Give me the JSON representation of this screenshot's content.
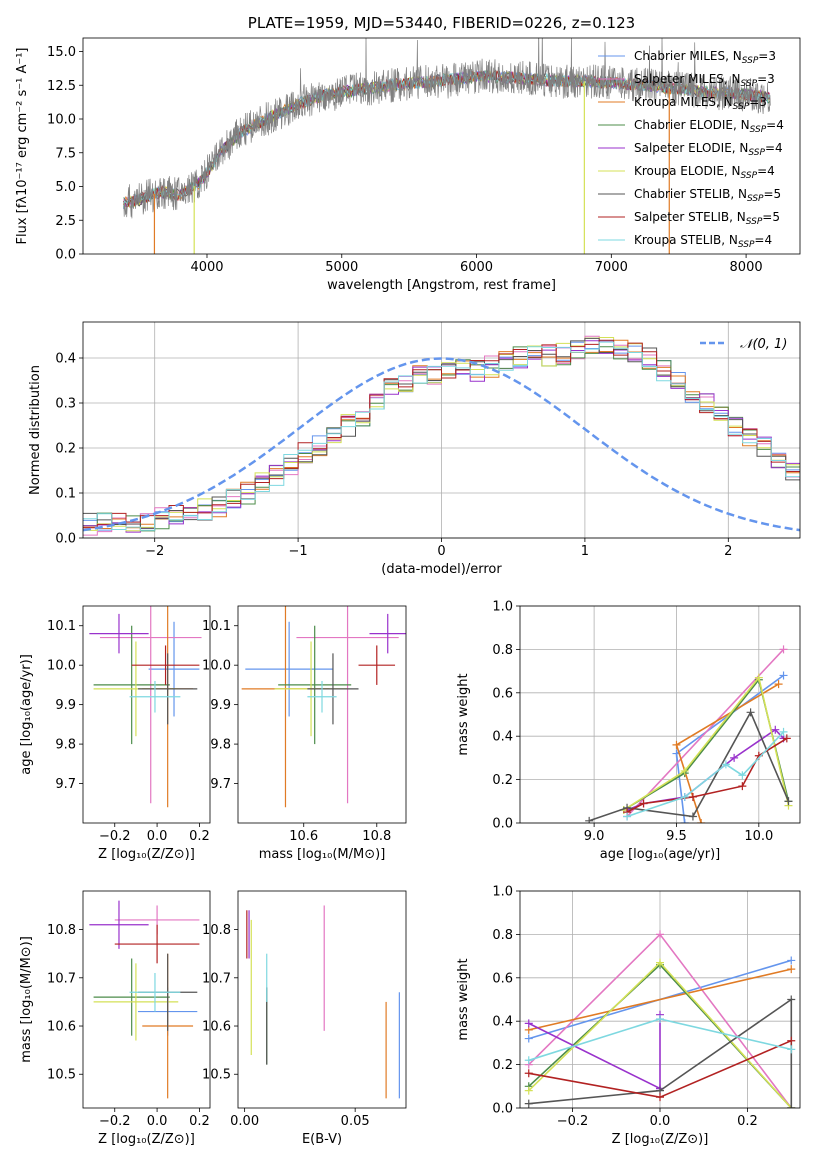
{
  "chart_data": [
    {
      "id": "spectrum",
      "type": "line",
      "title": "PLATE=1959, MJD=53440, FIBERID=0226, z=0.123",
      "xlabel": "wavelength [Angstrom, rest frame]",
      "ylabel": "Flux [fλ10⁻¹⁷ erg cm⁻² s⁻¹ A⁻¹]",
      "xlim": [
        3080,
        8400
      ],
      "ylim": [
        0,
        16
      ],
      "xticks": [
        4000,
        5000,
        6000,
        7000,
        8000
      ],
      "yticks": [
        0.0,
        2.5,
        5.0,
        7.5,
        10.0,
        12.5,
        15.0
      ],
      "data_color": "#808080",
      "x": [
        3380,
        3500,
        3650,
        3800,
        3950,
        4100,
        4250,
        4400,
        4550,
        4700,
        4850,
        5000,
        5150,
        5300,
        5450,
        5600,
        5750,
        5900,
        6050,
        6200,
        6350,
        6500,
        6650,
        6800,
        6950,
        7100,
        7250,
        7400,
        7550,
        7700,
        7850,
        8000,
        8180
      ],
      "flux": [
        3.8,
        4.0,
        4.6,
        4.4,
        5.3,
        7.5,
        9.0,
        9.8,
        10.5,
        11.2,
        11.7,
        12.0,
        12.2,
        12.4,
        12.6,
        12.7,
        12.9,
        13.0,
        13.2,
        13.1,
        13.0,
        12.9,
        12.8,
        12.8,
        12.7,
        12.6,
        12.5,
        12.3,
        12.2,
        12.0,
        11.9,
        11.8,
        11.6
      ],
      "legend": [
        {
          "prefix": "Chabrier MILES, N",
          "sub": "SSP",
          "suffix": "=3",
          "color": "#6495ed"
        },
        {
          "prefix": "Salpeter MILES, N",
          "sub": "SSP",
          "suffix": "=3",
          "color": "#e377c2"
        },
        {
          "prefix": "Kroupa MILES, N",
          "sub": "SSP",
          "suffix": "=3",
          "color": "#e07b25"
        },
        {
          "prefix": "Chabrier ELODIE, N",
          "sub": "SSP",
          "suffix": "=4",
          "color": "#4c8c4a"
        },
        {
          "prefix": "Salpeter ELODIE, N",
          "sub": "SSP",
          "suffix": "=4",
          "color": "#9932cc"
        },
        {
          "prefix": "Kroupa ELODIE, N",
          "sub": "SSP",
          "suffix": "=4",
          "color": "#d4e157"
        },
        {
          "prefix": "Chabrier STELIB, N",
          "sub": "SSP",
          "suffix": "=5",
          "color": "#555555"
        },
        {
          "prefix": "Salpeter STELIB, N",
          "sub": "SSP",
          "suffix": "=5",
          "color": "#b22222"
        },
        {
          "prefix": "Kroupa STELIB, N",
          "sub": "SSP",
          "suffix": "=4",
          "color": "#7ed8e0"
        }
      ]
    },
    {
      "id": "residuals",
      "type": "line",
      "xlabel": "(data-model)/error",
      "ylabel": "Normed distribution",
      "xlim": [
        -2.5,
        2.5
      ],
      "ylim": [
        0,
        0.48
      ],
      "xticks": [
        -2,
        -1,
        0,
        1,
        2
      ],
      "yticks": [
        0.0,
        0.1,
        0.2,
        0.3,
        0.4
      ],
      "grid": true,
      "bin_edges_start": -2.5,
      "bin_width": 0.1,
      "hist_template": [
        0.03,
        0.035,
        0.03,
        0.032,
        0.04,
        0.045,
        0.055,
        0.06,
        0.065,
        0.07,
        0.085,
        0.1,
        0.125,
        0.14,
        0.165,
        0.19,
        0.205,
        0.225,
        0.25,
        0.27,
        0.3,
        0.33,
        0.35,
        0.36,
        0.365,
        0.37,
        0.375,
        0.37,
        0.38,
        0.39,
        0.4,
        0.41,
        0.405,
        0.41,
        0.42,
        0.425,
        0.43,
        0.42,
        0.415,
        0.4,
        0.37,
        0.35,
        0.325,
        0.3,
        0.275,
        0.245,
        0.22,
        0.2,
        0.17,
        0.15,
        0.13,
        0.115,
        0.1,
        0.08,
        0.075,
        0.07,
        0.065,
        0.06,
        0.05,
        0.045,
        0.04,
        0.035,
        0.03,
        0.028,
        0.025
      ],
      "normal_label": "𝒩(0, 1)",
      "normal_color": "#6495ed"
    },
    {
      "id": "age-vs-Z",
      "type": "scatter",
      "xlabel": "Z [log₁₀(Z/Z⊙)]",
      "ylabel": "age  [log₁₀(age/yr)]",
      "xlim": [
        -0.35,
        0.25
      ],
      "ylim": [
        9.6,
        10.15
      ],
      "xticks": [
        -0.2,
        0.0,
        0.2
      ],
      "yticks": [
        9.7,
        9.8,
        9.9,
        10.0,
        10.1
      ],
      "points": [
        {
          "x": 0.08,
          "y": 9.99,
          "xerr": 0.12,
          "yerr": 0.12,
          "color": "#6495ed"
        },
        {
          "x": -0.03,
          "y": 10.07,
          "xerr": 0.24,
          "yerr": 0.42,
          "color": "#e377c2"
        },
        {
          "x": 0.05,
          "y": 9.94,
          "xerr": 0.12,
          "yerr": 0.3,
          "color": "#e07b25"
        },
        {
          "x": -0.12,
          "y": 9.95,
          "xerr": 0.18,
          "yerr": 0.15,
          "color": "#4c8c4a"
        },
        {
          "x": -0.18,
          "y": 10.08,
          "xerr": 0.14,
          "yerr": 0.05,
          "color": "#9932cc"
        },
        {
          "x": -0.1,
          "y": 9.94,
          "xerr": 0.2,
          "yerr": 0.12,
          "color": "#d4e157"
        },
        {
          "x": 0.05,
          "y": 9.94,
          "xerr": 0.14,
          "yerr": 0.09,
          "color": "#555555"
        },
        {
          "x": 0.04,
          "y": 10.0,
          "xerr": 0.16,
          "yerr": 0.05,
          "color": "#b22222"
        },
        {
          "x": -0.01,
          "y": 9.92,
          "xerr": 0.12,
          "yerr": 0.04,
          "color": "#7ed8e0"
        }
      ]
    },
    {
      "id": "age-vs-mass",
      "type": "scatter",
      "xlabel": "mass [log₁₀(M/M⊙)]",
      "ylabel": "",
      "xlim": [
        10.42,
        10.88
      ],
      "ylim": [
        9.6,
        10.15
      ],
      "xticks": [
        10.6,
        10.8
      ],
      "yticks": [
        9.7,
        9.8,
        9.9,
        10.0,
        10.1
      ],
      "points": [
        {
          "x": 10.56,
          "y": 9.99,
          "xerr": 0.12,
          "yerr": 0.12,
          "color": "#6495ed"
        },
        {
          "x": 10.72,
          "y": 10.07,
          "xerr": 0.14,
          "yerr": 0.42,
          "color": "#e377c2"
        },
        {
          "x": 10.55,
          "y": 9.94,
          "xerr": 0.12,
          "yerr": 0.3,
          "color": "#e07b25"
        },
        {
          "x": 10.63,
          "y": 9.95,
          "xerr": 0.1,
          "yerr": 0.15,
          "color": "#4c8c4a"
        },
        {
          "x": 10.83,
          "y": 10.08,
          "xerr": 0.05,
          "yerr": 0.05,
          "color": "#9932cc"
        },
        {
          "x": 10.62,
          "y": 9.94,
          "xerr": 0.1,
          "yerr": 0.12,
          "color": "#d4e157"
        },
        {
          "x": 10.68,
          "y": 9.94,
          "xerr": 0.07,
          "yerr": 0.09,
          "color": "#555555"
        },
        {
          "x": 10.8,
          "y": 10.0,
          "xerr": 0.05,
          "yerr": 0.05,
          "color": "#b22222"
        },
        {
          "x": 10.65,
          "y": 9.92,
          "xerr": 0.04,
          "yerr": 0.04,
          "color": "#7ed8e0"
        }
      ]
    },
    {
      "id": "mass-weight-vs-age",
      "type": "line",
      "xlabel": "age  [log₁₀(age/yr)]",
      "ylabel": "mass weight",
      "xlim": [
        8.55,
        10.25
      ],
      "ylim": [
        0,
        1
      ],
      "xticks": [
        9.0,
        9.5,
        10.0
      ],
      "yticks": [
        0.0,
        0.2,
        0.4,
        0.6,
        0.8,
        1.0
      ],
      "grid": true,
      "series": [
        {
          "color": "#6495ed",
          "x": [
            9.55,
            9.5,
            10.15
          ],
          "y": [
            0.0,
            0.32,
            0.68
          ]
        },
        {
          "color": "#e377c2",
          "x": [
            9.2,
            10.15
          ],
          "y": [
            0.03,
            0.8
          ]
        },
        {
          "color": "#e07b25",
          "x": [
            9.65,
            9.5,
            10.12
          ],
          "y": [
            0.0,
            0.36,
            0.64
          ]
        },
        {
          "color": "#4c8c4a",
          "x": [
            9.18,
            9.55,
            10.0,
            10.18
          ],
          "y": [
            0.06,
            0.23,
            0.66,
            0.1
          ]
        },
        {
          "color": "#9932cc",
          "x": [
            9.2,
            9.3,
            9.55,
            9.85,
            10.1,
            10.15
          ],
          "y": [
            0.06,
            0.09,
            0.12,
            0.3,
            0.43,
            0.39
          ]
        },
        {
          "color": "#d4e157",
          "x": [
            9.18,
            9.55,
            10.0,
            10.18
          ],
          "y": [
            0.06,
            0.24,
            0.67,
            0.08
          ]
        },
        {
          "color": "#555555",
          "x": [
            8.97,
            9.2,
            9.6,
            9.95,
            10.18
          ],
          "y": [
            0.01,
            0.07,
            0.03,
            0.51,
            0.1
          ]
        },
        {
          "color": "#b22222",
          "x": [
            9.2,
            9.3,
            9.6,
            9.9,
            10.0,
            10.17
          ],
          "y": [
            0.05,
            0.09,
            0.12,
            0.17,
            0.31,
            0.39
          ]
        },
        {
          "color": "#7ed8e0",
          "x": [
            9.2,
            9.55,
            9.8,
            9.9,
            10.15
          ],
          "y": [
            0.03,
            0.12,
            0.27,
            0.22,
            0.42
          ]
        }
      ]
    },
    {
      "id": "mass-vs-Z",
      "type": "scatter",
      "xlabel": "Z [log₁₀(Z/Z⊙)]",
      "ylabel": "mass [log₁₀(M/M⊙)]",
      "xlim": [
        -0.35,
        0.25
      ],
      "ylim": [
        10.43,
        10.88
      ],
      "xticks": [
        -0.2,
        0.0,
        0.2
      ],
      "yticks": [
        10.5,
        10.6,
        10.7,
        10.8
      ],
      "points": [
        {
          "x": 0.05,
          "y": 10.63,
          "xerr": 0.14,
          "yerr": 0.05,
          "color": "#6495ed"
        },
        {
          "x": 0.0,
          "y": 10.82,
          "xerr": 0.2,
          "yerr": 0.03,
          "color": "#e377c2"
        },
        {
          "x": 0.05,
          "y": 10.6,
          "xerr": 0.12,
          "yerr": 0.15,
          "color": "#e07b25"
        },
        {
          "x": -0.12,
          "y": 10.66,
          "xerr": 0.18,
          "yerr": 0.08,
          "color": "#4c8c4a"
        },
        {
          "x": -0.18,
          "y": 10.81,
          "xerr": 0.14,
          "yerr": 0.05,
          "color": "#9932cc"
        },
        {
          "x": -0.1,
          "y": 10.65,
          "xerr": 0.2,
          "yerr": 0.08,
          "color": "#d4e157"
        },
        {
          "x": 0.05,
          "y": 10.67,
          "xerr": 0.14,
          "yerr": 0.08,
          "color": "#555555"
        },
        {
          "x": 0.0,
          "y": 10.77,
          "xerr": 0.2,
          "yerr": 0.04,
          "color": "#b22222"
        },
        {
          "x": -0.01,
          "y": 10.67,
          "xerr": 0.12,
          "yerr": 0.04,
          "color": "#7ed8e0"
        }
      ]
    },
    {
      "id": "mass-vs-EBV",
      "type": "scatter",
      "xlabel": "E(B-V)",
      "ylabel": "",
      "xlim": [
        -0.003,
        0.073
      ],
      "ylim": [
        10.43,
        10.88
      ],
      "xticks": [
        0.0,
        0.05
      ],
      "yticks": [
        10.5,
        10.6,
        10.7,
        10.8
      ],
      "points": [
        {
          "x": 0.07,
          "y": 10.56,
          "yerr": 0.11,
          "color": "#6495ed"
        },
        {
          "x": 0.036,
          "y": 10.72,
          "yerr": 0.13,
          "color": "#e377c2"
        },
        {
          "x": 0.064,
          "y": 10.55,
          "yerr": 0.1,
          "color": "#e07b25"
        },
        {
          "x": 0.01,
          "y": 10.6,
          "yerr": 0.08,
          "color": "#4c8c4a"
        },
        {
          "x": 0.002,
          "y": 10.79,
          "yerr": 0.05,
          "color": "#9932cc"
        },
        {
          "x": 0.003,
          "y": 10.68,
          "yerr": 0.14,
          "color": "#d4e157"
        },
        {
          "x": 0.01,
          "y": 10.6,
          "yerr": 0.08,
          "color": "#555555"
        },
        {
          "x": 0.001,
          "y": 10.79,
          "yerr": 0.05,
          "color": "#b22222"
        },
        {
          "x": 0.01,
          "y": 10.7,
          "yerr": 0.05,
          "color": "#7ed8e0"
        }
      ]
    },
    {
      "id": "mass-weight-vs-Z",
      "type": "line",
      "xlabel": "Z [log₁₀(Z/Z⊙)]",
      "ylabel": "mass weight",
      "xlim": [
        -0.32,
        0.32
      ],
      "ylim": [
        0,
        1
      ],
      "xticks": [
        -0.2,
        0.0,
        0.2
      ],
      "yticks": [
        0.0,
        0.2,
        0.4,
        0.6,
        0.8,
        1.0
      ],
      "grid": true,
      "series": [
        {
          "color": "#6495ed",
          "x": [
            -0.3,
            0.3
          ],
          "y": [
            0.32,
            0.68
          ]
        },
        {
          "color": "#e377c2",
          "x": [
            -0.3,
            0.0,
            0.3
          ],
          "y": [
            0.2,
            0.8,
            0.0
          ]
        },
        {
          "color": "#e07b25",
          "x": [
            -0.3,
            0.3
          ],
          "y": [
            0.36,
            0.64
          ]
        },
        {
          "color": "#4c8c4a",
          "x": [
            -0.3,
            0.0,
            0.3
          ],
          "y": [
            0.1,
            0.66,
            0.0
          ]
        },
        {
          "color": "#9932cc",
          "x": [
            -0.3,
            0.0,
            0.0,
            0.0
          ],
          "y": [
            0.39,
            0.09,
            0.43,
            0.09
          ]
        },
        {
          "color": "#d4e157",
          "x": [
            -0.3,
            0.0,
            0.3
          ],
          "y": [
            0.08,
            0.67,
            0.0
          ]
        },
        {
          "color": "#555555",
          "x": [
            -0.3,
            0.0,
            0.3,
            0.3
          ],
          "y": [
            0.02,
            0.08,
            0.5,
            0.0
          ]
        },
        {
          "color": "#b22222",
          "x": [
            -0.3,
            0.0,
            0.3
          ],
          "y": [
            0.16,
            0.05,
            0.31
          ]
        },
        {
          "color": "#7ed8e0",
          "x": [
            -0.3,
            0.0,
            0.3
          ],
          "y": [
            0.22,
            0.41,
            0.27
          ]
        }
      ]
    }
  ]
}
